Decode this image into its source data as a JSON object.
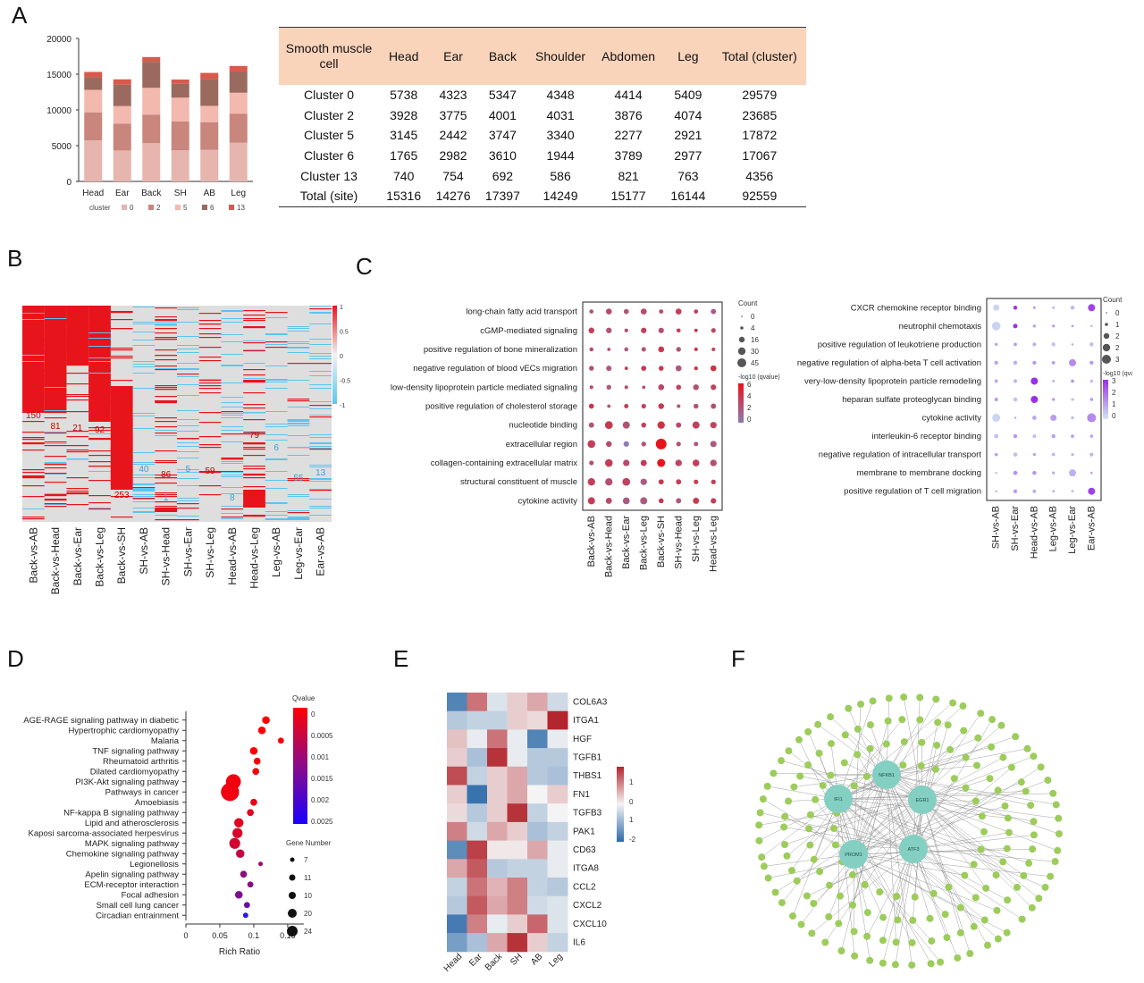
{
  "panels": {
    "A": "A",
    "B": "B",
    "C": "C",
    "D": "D",
    "E": "E",
    "F": "F"
  },
  "chart_data": [
    {
      "panel": "A-bar",
      "type": "bar",
      "stacked": true,
      "categories": [
        "Head",
        "Ear",
        "Back",
        "SH",
        "AB",
        "Leg"
      ],
      "ylim": [
        0,
        20000
      ],
      "yticks": [
        0,
        5000,
        10000,
        15000,
        20000
      ],
      "legend_title": "cluster",
      "series": [
        {
          "name": "0",
          "color": "#e6b5ae",
          "values": [
            5738,
            4323,
            5347,
            4348,
            4414,
            5409
          ]
        },
        {
          "name": "2",
          "color": "#c9867d",
          "values": [
            3928,
            3775,
            4001,
            4031,
            3876,
            4074
          ]
        },
        {
          "name": "5",
          "color": "#f3b8ae",
          "values": [
            3145,
            2442,
            3747,
            3340,
            2277,
            2921
          ]
        },
        {
          "name": "6",
          "color": "#9b6a5e",
          "values": [
            1765,
            2982,
            3610,
            1944,
            3789,
            2977
          ]
        },
        {
          "name": "13",
          "color": "#d9594c",
          "values": [
            740,
            754,
            692,
            586,
            821,
            763
          ]
        }
      ]
    },
    {
      "panel": "A-table",
      "type": "table",
      "header": [
        "Smooth muscle cell",
        "Head",
        "Ear",
        "Back",
        "Shoulder",
        "Abdomen",
        "Leg",
        "Total (cluster)"
      ],
      "rows": [
        [
          "Cluster 0",
          "5738",
          "4323",
          "5347",
          "4348",
          "4414",
          "5409",
          "29579"
        ],
        [
          "Cluster 2",
          "3928",
          "3775",
          "4001",
          "4031",
          "3876",
          "4074",
          "23685"
        ],
        [
          "Cluster 5",
          "3145",
          "2442",
          "3747",
          "3340",
          "2277",
          "2921",
          "17872"
        ],
        [
          "Cluster 6",
          "1765",
          "2982",
          "3610",
          "1944",
          "3789",
          "2977",
          "17067"
        ],
        [
          "Cluster 13",
          "740",
          "754",
          "692",
          "586",
          "821",
          "763",
          "4356"
        ],
        [
          "Total (site)",
          "15316",
          "14276",
          "17397",
          "14249",
          "15177",
          "16144",
          "92559"
        ]
      ]
    },
    {
      "panel": "B",
      "type": "heatmap",
      "columns": [
        "Back-vs-AB",
        "Back-vs-Head",
        "Back-vs-Ear",
        "Back-vs-Leg",
        "Back-vs-SH",
        "SH-vs-AB",
        "SH-vs-Head",
        "SH-vs-Ear",
        "SH-vs-Leg",
        "Head-vs-AB",
        "Head-vs-Leg",
        "Leg-vs-AB",
        "Leg-vs-Ear",
        "Ear-vs-AB"
      ],
      "block_counts": [
        {
          "value": "150",
          "color": "#cc0000"
        },
        {
          "value": "81",
          "color": "#cc0000"
        },
        {
          "value": "21",
          "color": "#cc0000"
        },
        {
          "value": "92",
          "color": "#cc0000"
        },
        {
          "value": "253",
          "color": "#cc0000"
        },
        {
          "value": "40",
          "color": "#3aa0d0"
        },
        {
          "value": "86",
          "color": "#cc0000"
        },
        {
          "value": "1",
          "color": "#3aa0d0"
        },
        {
          "value": "5",
          "color": "#3aa0d0"
        },
        {
          "value": "59",
          "color": "#cc0000"
        },
        {
          "value": "8",
          "color": "#3aa0d0"
        },
        {
          "value": "79",
          "color": "#cc0000"
        },
        {
          "value": "6",
          "color": "#3aa0d0"
        },
        {
          "value": "55",
          "color": "#3aa0d0"
        },
        {
          "value": "13",
          "color": "#3aa0d0"
        }
      ],
      "scale": {
        "labels": [
          "1",
          "0.5",
          "0",
          "-0.5",
          "-1"
        ],
        "high": "#e8141c",
        "mid": "#f2f2f2",
        "low": "#5bc5f0"
      }
    },
    {
      "panel": "C-left",
      "type": "scatter",
      "terms": [
        "long-chain fatty acid transport",
        "cGMP-mediated signaling",
        "positive regulation of bone mineralization",
        "negative regulation of blood vECs migration",
        "low-density lipoprotein particle mediated signaling",
        "positive regulation of cholesterol storage",
        "nucleotide binding",
        "extracellular region",
        "collagen-containing extracellular matrix",
        "structural constituent of muscle",
        "cytokine activity"
      ],
      "columns": [
        "Back-vs-AB",
        "Back-vs-Head",
        "Back-vs-Ear",
        "Back-vs-Leg",
        "Back-vs-SH",
        "SH-vs-Head",
        "SH-vs-Leg",
        "Head-vs-Leg"
      ],
      "size_legend": {
        "title": "Count",
        "labels": [
          "0",
          "4",
          "16",
          "30",
          "45"
        ]
      },
      "color_legend": {
        "title": "-log10 (qvalue)",
        "labels": [
          "6",
          "4",
          "2",
          "0"
        ]
      }
    },
    {
      "panel": "C-right",
      "type": "scatter",
      "terms": [
        "CXCR chemokine receptor binding",
        "neutrophil chemotaxis",
        "positive regulation of leukotriene production",
        "negative regulation of alpha-beta T cell activation",
        "very-low-density lipoprotein particle remodeling",
        "heparan sulfate proteoglycan binding",
        "cytokine activity",
        "interleukin-6 receptor binding",
        "negative regulation of intracellular transport",
        "membrane to membrane docking",
        "positive regulation of T cell migration"
      ],
      "columns": [
        "SH-vs-AB",
        "SH-vs-Ear",
        "Head-vs-AB",
        "Leg-vs-AB",
        "Leg-vs-Ear",
        "Ear-vs-AB"
      ],
      "size_legend": {
        "title": "Count",
        "labels": [
          "0",
          "1",
          "2",
          "2",
          "3"
        ]
      },
      "color_legend": {
        "title": "-log10 (qvalue)",
        "labels": [
          "3",
          "2",
          "1",
          "0"
        ]
      }
    },
    {
      "panel": "D",
      "type": "scatter",
      "xlabel": "Rich Ratio",
      "xlim": [
        0,
        0.16
      ],
      "xticks": [
        "0",
        "0.05",
        "0.1",
        "0.15"
      ],
      "qvalue_legend": {
        "title": "Qvalue",
        "labels": [
          "0",
          "0.0005",
          "0.001",
          "0.0015",
          "0.002",
          "0.0025"
        ]
      },
      "size_legend": {
        "title": "Gene Number",
        "labels": [
          "7",
          "11",
          "10",
          "20",
          "24"
        ]
      },
      "pathways": [
        {
          "name": "AGE-RAGE signaling pathway in diabetic",
          "x": 0.118,
          "genes": 11,
          "q": 2e-05
        },
        {
          "name": "Hypertrophic cardiomyopathy",
          "x": 0.112,
          "genes": 11,
          "q": 3e-05
        },
        {
          "name": "Malaria",
          "x": 0.14,
          "genes": 9,
          "q": 5e-05
        },
        {
          "name": "TNF signaling pathway",
          "x": 0.1,
          "genes": 11,
          "q": 8e-05
        },
        {
          "name": "Rheumatoid arthritis",
          "x": 0.105,
          "genes": 10,
          "q": 0.0001
        },
        {
          "name": "Dilated cardiomyopathy",
          "x": 0.103,
          "genes": 10,
          "q": 0.00012
        },
        {
          "name": "PI3K-Akt signaling pathway",
          "x": 0.07,
          "genes": 20,
          "q": 0.0002
        },
        {
          "name": "Pathways in cancer",
          "x": 0.065,
          "genes": 24,
          "q": 0.0002
        },
        {
          "name": "Amoebiasis",
          "x": 0.1,
          "genes": 10,
          "q": 0.0003
        },
        {
          "name": "NF-kappa B signaling pathway",
          "x": 0.095,
          "genes": 10,
          "q": 0.0004
        },
        {
          "name": "Lipid and atherosclerosis",
          "x": 0.078,
          "genes": 13,
          "q": 0.0004
        },
        {
          "name": "Kaposi sarcoma-associated herpesvirus",
          "x": 0.076,
          "genes": 14,
          "q": 0.0005
        },
        {
          "name": "MAPK signaling pathway",
          "x": 0.072,
          "genes": 15,
          "q": 0.0006
        },
        {
          "name": "Chemokine signaling pathway",
          "x": 0.08,
          "genes": 12,
          "q": 0.0008
        },
        {
          "name": "Legionellosis",
          "x": 0.11,
          "genes": 7,
          "q": 0.0014
        },
        {
          "name": "Apelin signaling pathway",
          "x": 0.085,
          "genes": 10,
          "q": 0.0015
        },
        {
          "name": "ECM-receptor interaction",
          "x": 0.095,
          "genes": 9,
          "q": 0.0016
        },
        {
          "name": "Focal adhesion",
          "x": 0.078,
          "genes": 11,
          "q": 0.0017
        },
        {
          "name": "Small cell lung cancer",
          "x": 0.09,
          "genes": 9,
          "q": 0.002
        },
        {
          "name": "Circadian entrainment",
          "x": 0.088,
          "genes": 8,
          "q": 0.0028
        }
      ]
    },
    {
      "panel": "E",
      "type": "heatmap",
      "columns": [
        "Head",
        "Ear",
        "Back",
        "SH",
        "AB",
        "Leg"
      ],
      "genes": [
        "COL6A3",
        "ITGA1",
        "HGF",
        "TGFB1",
        "THBS1",
        "FN1",
        "TGFB3",
        "PAK1",
        "CD63",
        "ITGA8",
        "CCL2",
        "CXCL2",
        "CXCL10",
        "IL6"
      ],
      "scale_labels": [
        "1",
        "0",
        "1",
        "-2"
      ],
      "values": [
        [
          -1.3,
          1.0,
          -0.2,
          0.3,
          0.6,
          -0.3
        ],
        [
          -0.5,
          -0.4,
          -0.4,
          0.3,
          0.2,
          1.6
        ],
        [
          0.4,
          -0.1,
          1.0,
          -0.1,
          -1.3,
          -0.1
        ],
        [
          0.3,
          -0.6,
          1.5,
          -0.1,
          -0.5,
          -0.5
        ],
        [
          1.3,
          -0.4,
          0.3,
          0.6,
          -0.5,
          -0.6
        ],
        [
          0.3,
          -1.5,
          0.3,
          0.6,
          0.0,
          0.3
        ],
        [
          0.2,
          -0.5,
          0.3,
          1.5,
          -0.4,
          0.0
        ],
        [
          0.9,
          -0.3,
          0.6,
          0.3,
          -0.6,
          -0.4
        ],
        [
          -1.2,
          1.4,
          0.1,
          0.1,
          0.6,
          -0.1
        ],
        [
          0.6,
          1.2,
          -0.5,
          -0.4,
          -0.4,
          -0.1
        ],
        [
          -0.4,
          1.0,
          0.5,
          0.9,
          -0.4,
          -0.5
        ],
        [
          -0.5,
          1.2,
          0.6,
          0.9,
          -0.3,
          -0.2
        ],
        [
          -1.4,
          0.9,
          -0.1,
          0.3,
          1.1,
          -0.2
        ],
        [
          -1.0,
          -0.6,
          0.6,
          1.5,
          0.3,
          -0.4
        ]
      ]
    }
  ],
  "network": {
    "hubs": [
      "NFKB1",
      "EGR1",
      "ATF3",
      "PROM1",
      "IFI1"
    ],
    "hub_color": "#83cfc2",
    "leaf_color": "#9ccc5a"
  }
}
